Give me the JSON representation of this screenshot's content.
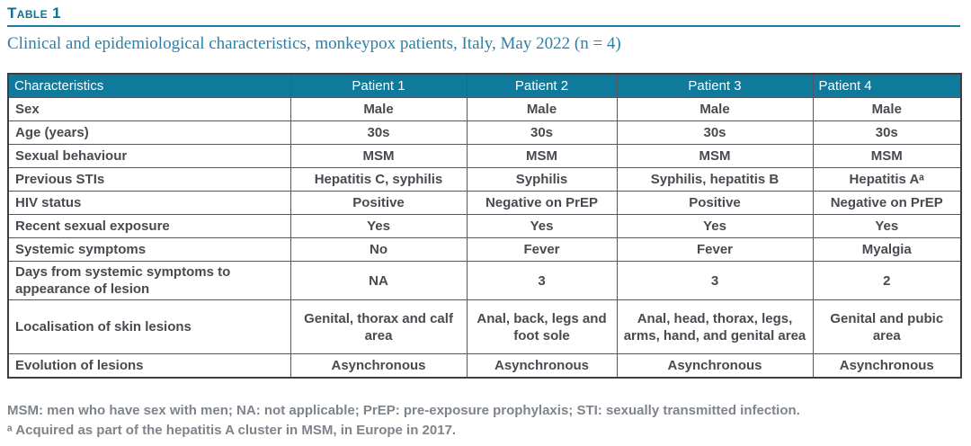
{
  "page": {
    "table_label": "Table 1",
    "caption": "Clinical and epidemiological characteristics, monkeypox patients, Italy, May 2022 (n = 4)"
  },
  "table": {
    "columns": [
      "Characteristics",
      "Patient 1",
      "Patient 2",
      "Patient 3",
      "Patient 4"
    ],
    "rows": [
      {
        "label": "Sex",
        "values": [
          "Male",
          "Male",
          "Male",
          "Male"
        ]
      },
      {
        "label": "Age (years)",
        "values": [
          "30s",
          "30s",
          "30s",
          "30s"
        ]
      },
      {
        "label": "Sexual behaviour",
        "values": [
          "MSM",
          "MSM",
          "MSM",
          "MSM"
        ]
      },
      {
        "label": "Previous STIs",
        "values": [
          "Hepatitis C, syphilis",
          "Syphilis",
          "Syphilis, hepatitis B",
          "Hepatitis Aᵃ"
        ]
      },
      {
        "label": "HIV status",
        "values": [
          "Positive",
          "Negative on PrEP",
          "Positive",
          "Negative on PrEP"
        ]
      },
      {
        "label": "Recent sexual exposure",
        "values": [
          "Yes",
          "Yes",
          "Yes",
          "Yes"
        ]
      },
      {
        "label": "Systemic symptoms",
        "values": [
          "No",
          "Fever",
          "Fever",
          "Myalgia"
        ]
      },
      {
        "label": "Days from systemic symptoms to appearance of lesion",
        "values": [
          "NA",
          "3",
          "3",
          "2"
        ]
      },
      {
        "label": "Localisation of skin lesions",
        "values": [
          "Genital, thorax and calf area",
          "Anal, back, legs and foot sole",
          "Anal, head, thorax, legs, arms, hand, and genital area",
          "Genital and pubic area"
        ]
      },
      {
        "label": "Evolution of lesions",
        "values": [
          "Asynchronous",
          "Asynchronous",
          "Asynchronous",
          "Asynchronous"
        ]
      }
    ]
  },
  "footnotes": {
    "abbreviations": "MSM: men who have sex with men; NA: not applicable; PrEP: pre-exposure prophylaxis; STI: sexually transmitted infection.",
    "note_a": "ᵃ Acquired as part of the hepatitis A cluster in MSM, in Europe in 2017."
  },
  "colors": {
    "header_teal": "#0f7a9b",
    "label_teal": "#0d7194",
    "caption_blue": "#2b80ab",
    "body_text": "#474b50",
    "border_gray": "#54585d",
    "footnote_gray": "#7e848b"
  }
}
